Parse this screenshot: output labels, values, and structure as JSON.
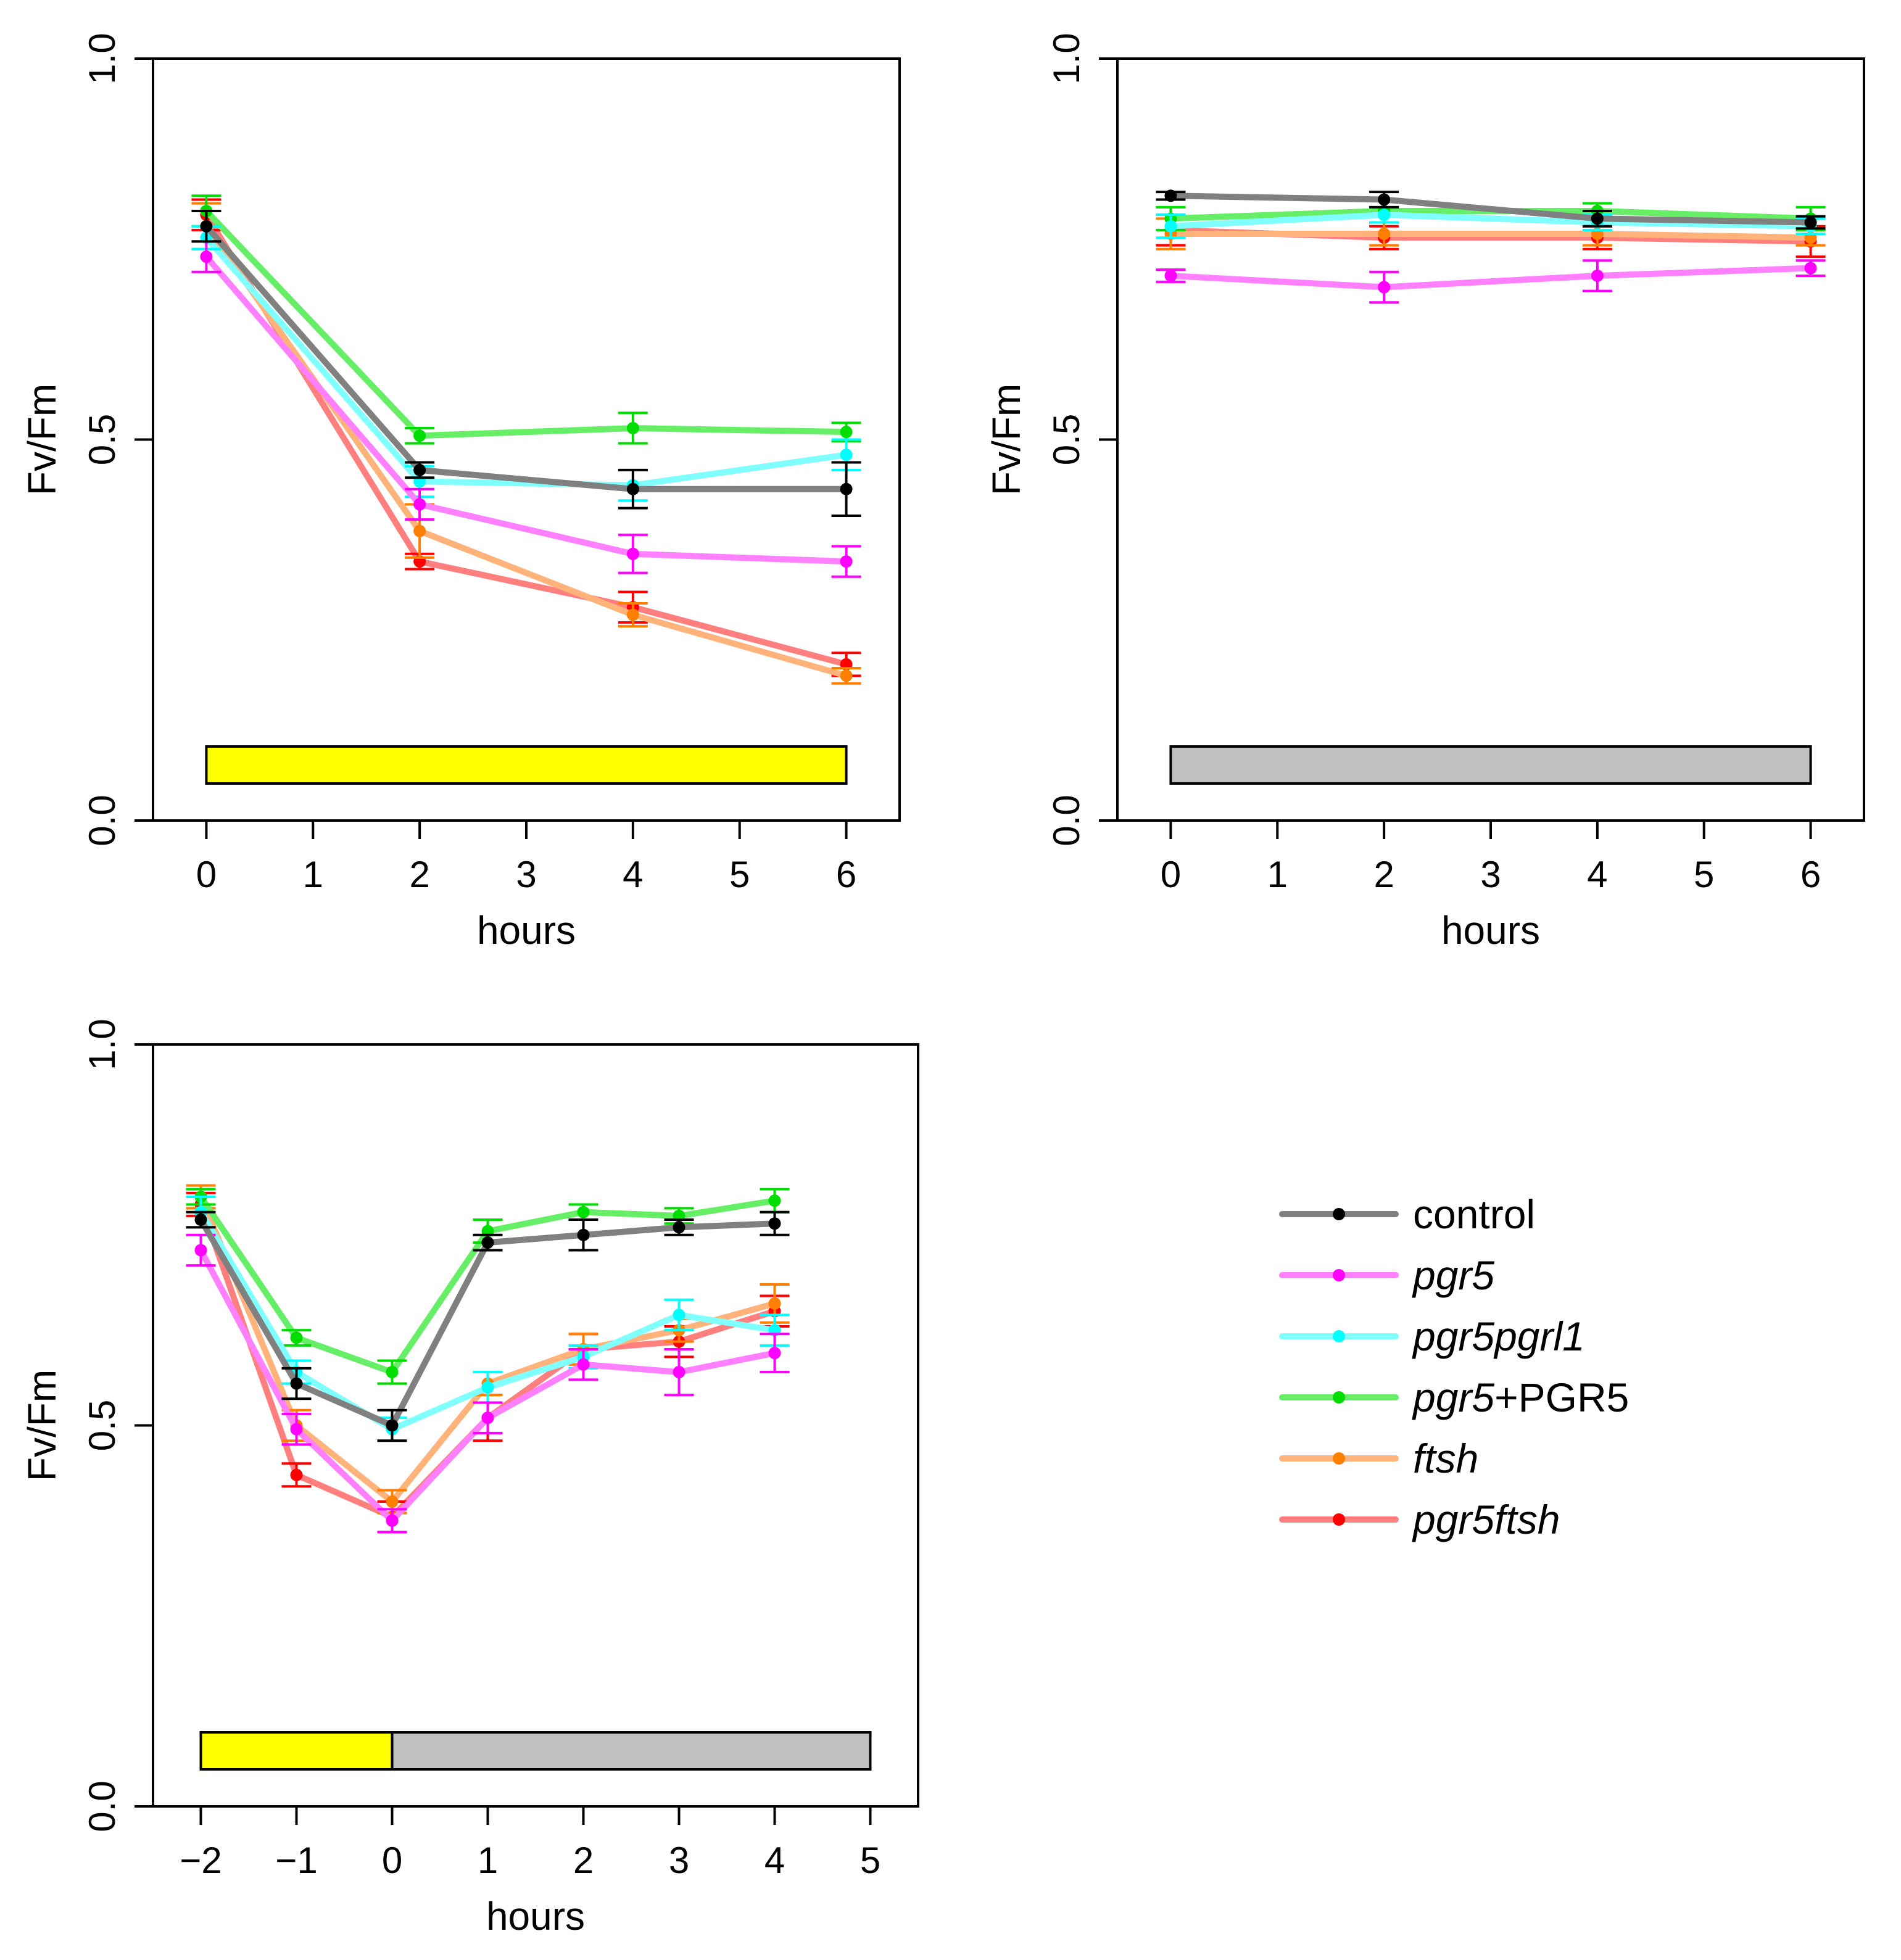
{
  "colors": {
    "control": "#808080",
    "control_dot": "#000000",
    "pgr5": "#ff80ff",
    "pgr5_dot": "#ff00ff",
    "pgr5pgrl1": "#80ffff",
    "pgr5pgrl1_dot": "#00ffff",
    "pgr5_PGR5": "#66ee66",
    "pgr5_PGR5_dot": "#00dd00",
    "ftsh": "#ffb27a",
    "ftsh_dot": "#ff7f00",
    "pgr5ftsh": "#ff7f7f",
    "pgr5ftsh_dot": "#ff0000",
    "light_bar": "#ffff00",
    "dark_bar": "#c0c0c0"
  },
  "legend": {
    "items": [
      {
        "key": "control",
        "label_a": "control",
        "label_b": ""
      },
      {
        "key": "pgr5",
        "label_a": "pgr5",
        "label_b": ""
      },
      {
        "key": "pgr5pgrl1",
        "label_a": "pgr5pgrl1",
        "label_b": ""
      },
      {
        "key": "pgr5_PGR5",
        "label_a": "pgr5",
        "label_b": "+PGR5"
      },
      {
        "key": "ftsh",
        "label_a": "ftsh",
        "label_b": ""
      },
      {
        "key": "pgr5ftsh",
        "label_a": "pgr5ftsh",
        "label_b": ""
      }
    ]
  },
  "chart_data": [
    {
      "id": "high-light",
      "type": "line",
      "title": "",
      "xlabel": "hours",
      "ylabel": "Fv/Fm",
      "xlim": [
        -0.5,
        6.5
      ],
      "ylim": [
        0.0,
        1.0
      ],
      "xticks": [
        0,
        1,
        2,
        3,
        4,
        5,
        6
      ],
      "xtick_labels": [
        "0",
        "1",
        "2",
        "3",
        "4",
        "5",
        "6"
      ],
      "yticks": [
        0.0,
        0.5,
        1.0
      ],
      "ytick_labels": [
        "0.0",
        "0.5",
        "1.0"
      ],
      "condition_bars": [
        {
          "from": 0,
          "to": 6,
          "condition": "light"
        }
      ],
      "series": [
        {
          "name": "control",
          "x": [
            0,
            2,
            4,
            6
          ],
          "values": [
            0.78,
            0.46,
            0.435,
            0.435
          ],
          "errors": [
            0.02,
            0.01,
            0.025,
            0.035
          ]
        },
        {
          "name": "pgr5",
          "x": [
            0,
            2,
            4,
            6
          ],
          "values": [
            0.74,
            0.415,
            0.35,
            0.34
          ],
          "errors": [
            0.02,
            0.02,
            0.025,
            0.02
          ]
        },
        {
          "name": "pgr5pgrl1",
          "x": [
            0,
            2,
            4,
            6
          ],
          "values": [
            0.765,
            0.445,
            0.44,
            0.48
          ],
          "errors": [
            0.015,
            0.02,
            0.02,
            0.02
          ]
        },
        {
          "name": "pgr5_PGR5",
          "x": [
            0,
            2,
            4,
            6
          ],
          "values": [
            0.8,
            0.505,
            0.515,
            0.51
          ],
          "errors": [
            0.02,
            0.01,
            0.02,
            0.012
          ]
        },
        {
          "name": "ftsh",
          "x": [
            0,
            2,
            4,
            6
          ],
          "values": [
            0.78,
            0.38,
            0.27,
            0.19
          ],
          "errors": [
            0.03,
            0.035,
            0.015,
            0.01
          ]
        },
        {
          "name": "pgr5ftsh",
          "x": [
            0,
            2,
            4,
            6
          ],
          "values": [
            0.795,
            0.34,
            0.28,
            0.205
          ],
          "errors": [
            0.02,
            0.01,
            0.02,
            0.015
          ]
        }
      ]
    },
    {
      "id": "darkness",
      "type": "line",
      "title": "",
      "xlabel": "hours",
      "ylabel": "Fv/Fm",
      "xlim": [
        -0.5,
        6.5
      ],
      "ylim": [
        0.0,
        1.0
      ],
      "xticks": [
        0,
        1,
        2,
        3,
        4,
        5,
        6
      ],
      "xtick_labels": [
        "0",
        "1",
        "2",
        "3",
        "4",
        "5",
        "6"
      ],
      "yticks": [
        0.0,
        0.5,
        1.0
      ],
      "ytick_labels": [
        "0.0",
        "0.5",
        "1.0"
      ],
      "condition_bars": [
        {
          "from": 0,
          "to": 6,
          "condition": "dark"
        }
      ],
      "series": [
        {
          "name": "control",
          "x": [
            0,
            2,
            4,
            6
          ],
          "values": [
            0.82,
            0.815,
            0.79,
            0.785
          ],
          "errors": [
            0.005,
            0.01,
            0.01,
            0.008
          ]
        },
        {
          "name": "pgr5",
          "x": [
            0,
            2,
            4,
            6
          ],
          "values": [
            0.715,
            0.7,
            0.715,
            0.725
          ],
          "errors": [
            0.008,
            0.02,
            0.02,
            0.01
          ]
        },
        {
          "name": "pgr5pgrl1",
          "x": [
            0,
            2,
            4,
            6
          ],
          "values": [
            0.78,
            0.795,
            0.785,
            0.78
          ],
          "errors": [
            0.015,
            0.01,
            0.01,
            0.01
          ]
        },
        {
          "name": "pgr5_PGR5",
          "x": [
            0,
            2,
            4,
            6
          ],
          "values": [
            0.79,
            0.8,
            0.8,
            0.79
          ],
          "errors": [
            0.015,
            0.015,
            0.01,
            0.015
          ]
        },
        {
          "name": "ftsh",
          "x": [
            0,
            2,
            4,
            6
          ],
          "values": [
            0.77,
            0.77,
            0.77,
            0.765
          ],
          "errors": [
            0.02,
            0.015,
            0.015,
            0.01
          ]
        },
        {
          "name": "pgr5ftsh",
          "x": [
            0,
            2,
            4,
            6
          ],
          "values": [
            0.775,
            0.765,
            0.765,
            0.76
          ],
          "errors": [
            0.02,
            0.015,
            0.015,
            0.02
          ]
        }
      ]
    },
    {
      "id": "recovery",
      "type": "line",
      "title": "",
      "xlabel": "hours",
      "ylabel": "Fv/Fm",
      "xlim": [
        -2.5,
        5.5
      ],
      "ylim": [
        0.0,
        1.0
      ],
      "xticks": [
        -2,
        -1,
        0,
        1,
        2,
        3,
        4,
        5
      ],
      "xtick_labels": [
        "−2",
        "−1",
        "0",
        "1",
        "2",
        "3",
        "4",
        "5"
      ],
      "yticks": [
        0.0,
        0.5,
        1.0
      ],
      "ytick_labels": [
        "0.0",
        "0.5",
        "1.0"
      ],
      "condition_bars": [
        {
          "from": -2,
          "to": 0,
          "condition": "light"
        },
        {
          "from": 0,
          "to": 5,
          "condition": "dark"
        }
      ],
      "series": [
        {
          "name": "control",
          "x": [
            -2,
            -1,
            0,
            1,
            2,
            3,
            4
          ],
          "values": [
            0.77,
            0.555,
            0.5,
            0.74,
            0.75,
            0.76,
            0.765
          ],
          "errors": [
            0.01,
            0.02,
            0.02,
            0.01,
            0.02,
            0.01,
            0.015
          ]
        },
        {
          "name": "pgr5",
          "x": [
            -2,
            -1,
            0,
            1,
            2,
            3,
            4
          ],
          "values": [
            0.73,
            0.495,
            0.375,
            0.51,
            0.58,
            0.57,
            0.595
          ],
          "errors": [
            0.02,
            0.02,
            0.015,
            0.02,
            0.02,
            0.03,
            0.025
          ]
        },
        {
          "name": "pgr5pgrl1",
          "x": [
            -2,
            -1,
            0,
            1,
            2,
            3,
            4
          ],
          "values": [
            0.78,
            0.57,
            0.495,
            0.55,
            0.59,
            0.645,
            0.625
          ],
          "errors": [
            0.02,
            0.015,
            0.015,
            0.02,
            0.015,
            0.02,
            0.02
          ]
        },
        {
          "name": "pgr5_PGR5",
          "x": [
            -2,
            -1,
            0,
            1,
            2,
            3,
            4
          ],
          "values": [
            0.8,
            0.615,
            0.57,
            0.755,
            0.78,
            0.775,
            0.795
          ],
          "errors": [
            0.01,
            0.01,
            0.015,
            0.015,
            0.01,
            0.01,
            0.015
          ]
        },
        {
          "name": "ftsh",
          "x": [
            -2,
            -1,
            0,
            1,
            2,
            3,
            4
          ],
          "values": [
            0.8,
            0.5,
            0.4,
            0.555,
            0.6,
            0.625,
            0.66
          ],
          "errors": [
            0.015,
            0.02,
            0.015,
            0.015,
            0.02,
            0.015,
            0.025
          ]
        },
        {
          "name": "pgr5ftsh",
          "x": [
            -2,
            -1,
            0,
            1,
            2,
            3,
            4
          ],
          "values": [
            0.79,
            0.435,
            0.38,
            0.51,
            0.6,
            0.61,
            0.65
          ],
          "errors": [
            0.015,
            0.015,
            0.02,
            0.03,
            0.02,
            0.02,
            0.02
          ]
        }
      ]
    }
  ]
}
